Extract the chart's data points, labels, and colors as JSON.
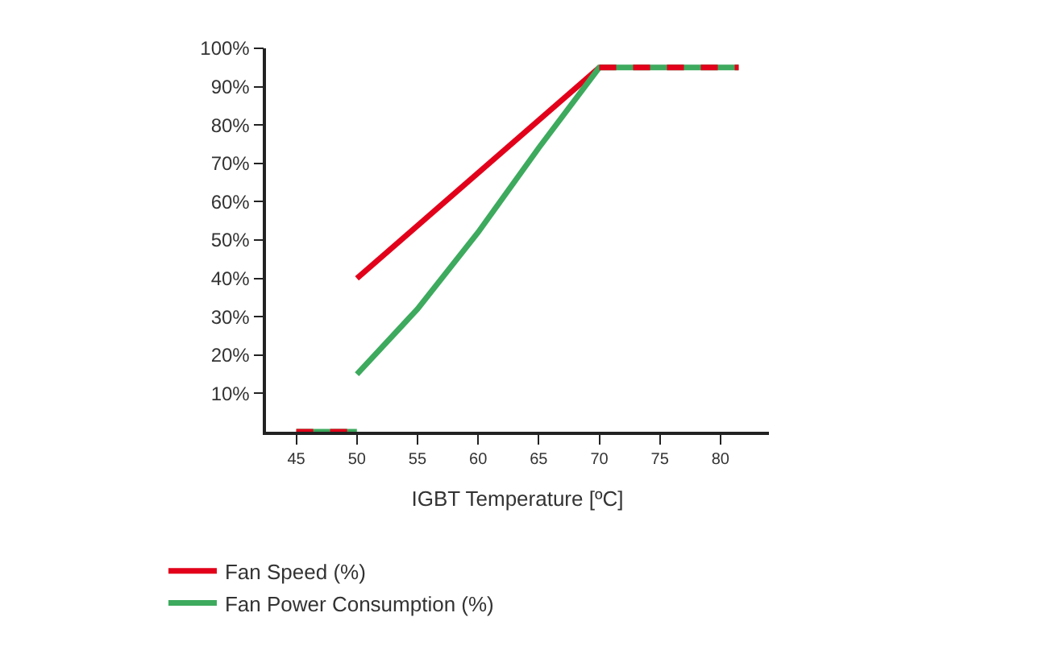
{
  "chart_data": {
    "type": "line",
    "xlabel": "IGBT Temperature [ºC]",
    "series": [
      {
        "name": "Fan Speed (%)",
        "color": "#e2001a",
        "x": [
          50,
          70
        ],
        "values": [
          40,
          95
        ]
      },
      {
        "name": "Fan Power Consumption (%)",
        "color": "#3daa5e",
        "x": [
          50,
          55,
          60,
          65,
          70,
          81.5
        ],
        "values": [
          15,
          32,
          52,
          74,
          95,
          95
        ]
      },
      {
        "color": "#3daa5e",
        "x": [
          45,
          50
        ],
        "values": [
          0,
          0
        ]
      },
      {
        "color": "#e2001a",
        "x": [
          45,
          50
        ],
        "values": [
          0,
          0
        ],
        "line_style": "dashed"
      },
      {
        "color": "#e2001a",
        "x": [
          70,
          81.5
        ],
        "values": [
          95,
          95
        ],
        "line_style": "dashed"
      }
    ],
    "xlim": [
      42.5,
      84
    ],
    "xticks": [
      45,
      50,
      55,
      60,
      65,
      70,
      75,
      80
    ],
    "ylim": [
      0,
      100
    ],
    "yticks": [
      {
        "value": 10,
        "label": "10%"
      },
      {
        "value": 20,
        "label": "20%"
      },
      {
        "value": 30,
        "label": "30%"
      },
      {
        "value": 40,
        "label": "40%"
      },
      {
        "value": 50,
        "label": "50%"
      },
      {
        "value": 60,
        "label": "60%"
      },
      {
        "value": 70,
        "label": "70%"
      },
      {
        "value": 80,
        "label": "80%"
      },
      {
        "value": 90,
        "label": "90%"
      },
      {
        "value": 100,
        "label": "100%"
      }
    ],
    "legend": "bottom",
    "marker": "none",
    "line_style": "solid"
  }
}
